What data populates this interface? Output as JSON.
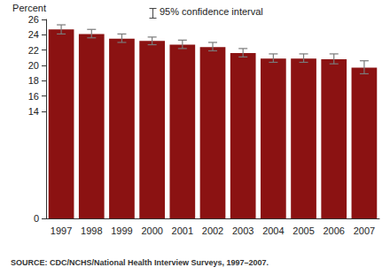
{
  "chart_data": {
    "type": "bar",
    "y_label": "Percent",
    "error_bar_label": "95% confidence interval",
    "source": "SOURCE: CDC/NCHS/National Health Interview Surveys, 1997–2007.",
    "categories": [
      "1997",
      "1998",
      "1999",
      "2000",
      "2001",
      "2002",
      "2003",
      "2004",
      "2005",
      "2006",
      "2007"
    ],
    "values": [
      24.7,
      24.1,
      23.5,
      23.2,
      22.7,
      22.4,
      21.6,
      20.9,
      20.9,
      20.8,
      19.7
    ],
    "ci_lower": [
      24.1,
      23.6,
      23.0,
      22.7,
      22.2,
      21.9,
      21.1,
      20.4,
      20.4,
      20.2,
      18.9
    ],
    "ci_upper": [
      25.3,
      24.7,
      24.1,
      23.7,
      23.3,
      23.0,
      22.2,
      21.5,
      21.5,
      21.5,
      20.6
    ],
    "color": "#8b1212",
    "ylim": [
      0,
      26
    ],
    "yticks": [
      0,
      14,
      16,
      18,
      20,
      22,
      24,
      26
    ],
    "grid": false
  }
}
